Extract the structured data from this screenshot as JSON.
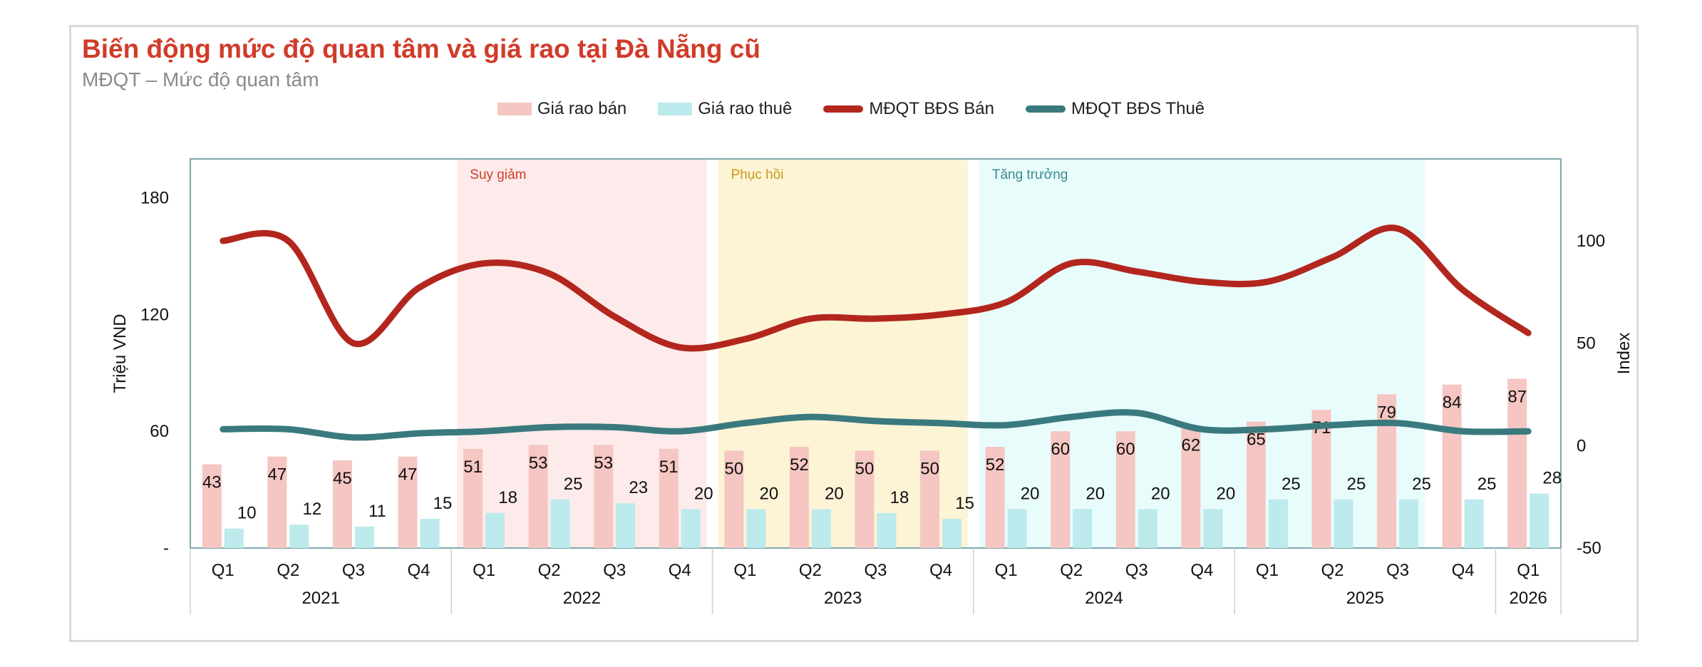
{
  "title": "Biến động mức độ quan tâm và giá rao tại Đà Nẵng cũ",
  "subtitle": "MĐQT – Mức độ quan tâm",
  "colors": {
    "title": "#d13b2a",
    "sale_bar": "#f5c6c2",
    "rent_bar": "#bdeaec",
    "sale_line": "#b3261e",
    "rent_line": "#3a7a7e",
    "frame": "#7fa8ad"
  },
  "chart_data": {
    "type": "bar",
    "categories": [
      "Q1",
      "Q2",
      "Q3",
      "Q4",
      "Q1",
      "Q2",
      "Q3",
      "Q4",
      "Q1",
      "Q2",
      "Q3",
      "Q4",
      "Q1",
      "Q2",
      "Q3",
      "Q4",
      "Q1",
      "Q2",
      "Q3",
      "Q4",
      "Q1"
    ],
    "years": [
      {
        "label": "2021",
        "start": 0,
        "end": 3
      },
      {
        "label": "2022",
        "start": 4,
        "end": 7
      },
      {
        "label": "2023",
        "start": 8,
        "end": 11
      },
      {
        "label": "2024",
        "start": 12,
        "end": 15
      },
      {
        "label": "2025",
        "start": 16,
        "end": 19
      },
      {
        "label": "2026",
        "start": 20,
        "end": 20
      }
    ],
    "series": [
      {
        "name": "Giá rao bán",
        "type": "bar",
        "axis": "left",
        "color": "#f5c6c2",
        "values": [
          43,
          47,
          45,
          47,
          51,
          53,
          53,
          51,
          50,
          52,
          50,
          50,
          52,
          60,
          60,
          62,
          65,
          71,
          79,
          84,
          87
        ]
      },
      {
        "name": "Giá rao thuê",
        "type": "bar",
        "axis": "left",
        "color": "#bdeaec",
        "values": [
          10,
          12,
          11,
          15,
          18,
          25,
          23,
          20,
          20,
          20,
          18,
          15,
          20,
          20,
          20,
          20,
          25,
          25,
          25,
          25,
          28
        ]
      },
      {
        "name": "MĐQT BĐS Bán",
        "type": "line",
        "axis": "right",
        "color": "#b3261e",
        "values": [
          100,
          100,
          50,
          77,
          89,
          84,
          63,
          48,
          52,
          62,
          62,
          64,
          70,
          89,
          85,
          80,
          80,
          92,
          106,
          76,
          55
        ]
      },
      {
        "name": "MĐQT BĐS Thuê",
        "type": "line",
        "axis": "right",
        "color": "#3a7a7e",
        "values": [
          8,
          8,
          4,
          6,
          7,
          9,
          9,
          7,
          11,
          14,
          12,
          11,
          10,
          14,
          16,
          8,
          8,
          10,
          11,
          7,
          7
        ]
      }
    ],
    "y_left": {
      "label": "Triệu VND",
      "min": 0,
      "max": 200,
      "ticks": [
        0,
        60,
        120,
        180
      ],
      "tick_labels": [
        "-",
        "60",
        "120",
        "180"
      ]
    },
    "y_right": {
      "label": "Index",
      "min": -50,
      "max": 140,
      "ticks": [
        -50,
        0,
        50,
        100
      ],
      "tick_labels": [
        "-50",
        "0",
        "50",
        "100"
      ]
    },
    "phases": [
      {
        "label": "Suy giảm",
        "start": 4,
        "end": 7,
        "fill": "#fcebea",
        "text_color": "#d13b2a"
      },
      {
        "label": "Phục hồi",
        "start": 8,
        "end": 11,
        "fill": "#fdf4d6",
        "text_color": "#c9981d"
      },
      {
        "label": "Tăng trưởng",
        "start": 12,
        "end": 18,
        "fill": "#e9fcfc",
        "text_color": "#3a8a8e"
      }
    ],
    "legend_position": "top-center"
  }
}
